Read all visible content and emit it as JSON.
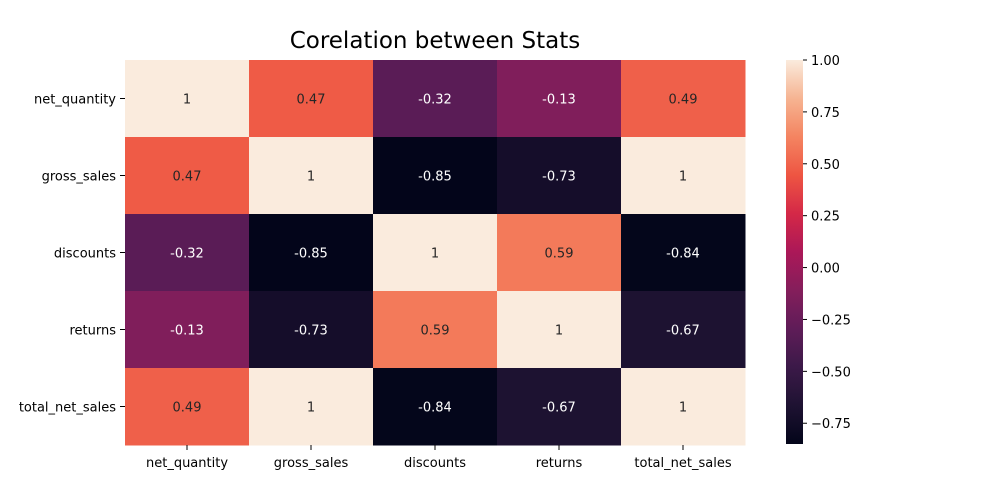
{
  "chart_data": {
    "type": "heatmap",
    "title": "Corelation between Stats",
    "xlabel": "",
    "ylabel": "",
    "x_categories": [
      "net_quantity",
      "gross_sales",
      "discounts",
      "returns",
      "total_net_sales"
    ],
    "y_categories": [
      "net_quantity",
      "gross_sales",
      "discounts",
      "returns",
      "total_net_sales"
    ],
    "values": [
      [
        1,
        0.47,
        -0.32,
        -0.13,
        0.49
      ],
      [
        0.47,
        1,
        -0.85,
        -0.73,
        1
      ],
      [
        -0.32,
        -0.85,
        1,
        0.59,
        -0.84
      ],
      [
        -0.13,
        -0.73,
        0.59,
        1,
        -0.67
      ],
      [
        0.49,
        1,
        -0.84,
        -0.67,
        1
      ]
    ],
    "annotations": [
      [
        "1",
        "0.47",
        "-0.32",
        "-0.13",
        "0.49"
      ],
      [
        "0.47",
        "1",
        "-0.85",
        "-0.73",
        "1"
      ],
      [
        "-0.32",
        "-0.85",
        "1",
        "0.59",
        "-0.84"
      ],
      [
        "-0.13",
        "-0.73",
        "0.59",
        "1",
        "-0.67"
      ],
      [
        "0.49",
        "1",
        "-0.84",
        "-0.67",
        "1"
      ]
    ],
    "colorbar": {
      "range": [
        -0.85,
        1
      ],
      "ticks": [
        1.0,
        0.75,
        0.5,
        0.25,
        0.0,
        -0.25,
        -0.5,
        -0.75
      ],
      "tick_labels": [
        "1.00",
        "0.75",
        "0.50",
        "0.25",
        "0.00",
        "−0.25",
        "−0.50",
        "−0.75"
      ],
      "colormap": "rocket"
    },
    "grid": false
  }
}
